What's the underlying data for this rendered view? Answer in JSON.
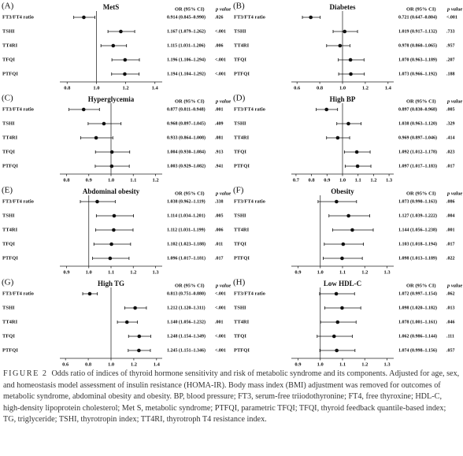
{
  "chart_data": [
    {
      "type": "forest",
      "panel": "(A)",
      "title": "MetS",
      "or_header": "OR (95% CI)",
      "p_header": "p value",
      "categories": [
        "FT3/FT4 ratio",
        "TSHI",
        "TT4RI",
        "TFQI",
        "PTFQI"
      ],
      "values": [
        0.914,
        1.167,
        1.115,
        1.196,
        1.194
      ],
      "lower": [
        0.845,
        1.079,
        1.031,
        1.106,
        1.104
      ],
      "upper": [
        0.99,
        1.262,
        1.206,
        1.294,
        1.292
      ],
      "value_labels": [
        "0.914 (0.845–0.990)",
        "1.167 (1.079–1.262)",
        "1.115 (1.031–1.206)",
        "1.196 (1.106–1.294)",
        "1.194 (1.104–1.292)"
      ],
      "p_values": [
        ".026",
        "<.001",
        ".006",
        "<.001",
        "<.001"
      ],
      "xlim": [
        0.75,
        1.45
      ],
      "xticks": [
        0.8,
        {
          "value": 1,
          "label": "1.0"
        },
        1.2,
        1.4
      ],
      "reference": 1
    },
    {
      "type": "forest",
      "panel": "(B)",
      "title": "Diabetes",
      "or_header": "OR (95% CI)",
      "p_header": "p value",
      "categories": [
        "FT3/FT4 ratio",
        "TSHI",
        "TT4RI",
        "TFQI",
        "PTFQI"
      ],
      "values": [
        0.721,
        1.019,
        0.978,
        1.07,
        1.073
      ],
      "lower": [
        0.647,
        0.917,
        0.86,
        0.963,
        0.966
      ],
      "upper": [
        0.804,
        1.132,
        1.065,
        1.189,
        1.192
      ],
      "value_labels": [
        "0.721 (0.647–0.804)",
        "1.019 (0.917–1.132)",
        "0.978 (0.860–1.065)",
        "1.070 (0.963–1.189)",
        "1.073 (0.966–1.192)"
      ],
      "p_values": [
        "<.001",
        ".733",
        ".957",
        ".207",
        ".188"
      ],
      "xlim": [
        0.55,
        1.45
      ],
      "xticks": [
        0.6,
        0.8,
        {
          "value": 1,
          "label": "1.0"
        },
        1.2,
        1.4
      ],
      "reference": 1
    },
    {
      "type": "forest",
      "panel": "(C)",
      "title": "Hyperglycemia",
      "or_header": "OR (95% CI)",
      "p_header": "p value",
      "categories": [
        "FT3/FT4 ratio",
        "TSHI",
        "TT4RI",
        "TFQI",
        "PTFQI"
      ],
      "values": [
        0.877,
        0.968,
        0.933,
        1.004,
        1.003
      ],
      "lower": [
        0.811,
        0.897,
        0.864,
        0.93,
        0.929
      ],
      "upper": [
        0.948,
        1.045,
        1.008,
        1.084,
        1.082
      ],
      "value_labels": [
        "0.877 (0.811–0.948)",
        "0.968 (0.897–1.045)",
        "0.933 (0.864–1.008)",
        "1.004 (0.930–1.084)",
        "1.003 (0.929–1.082)"
      ],
      "p_values": [
        ".001",
        ".409",
        ".081",
        ".913",
        ".941"
      ],
      "xlim": [
        0.77,
        1.23
      ],
      "xticks": [
        0.8,
        0.9,
        {
          "value": 1,
          "label": "1.0"
        },
        1.1,
        1.2
      ],
      "reference": 1
    },
    {
      "type": "forest",
      "panel": "(D)",
      "title": "High BP",
      "or_header": "OR (95% CI)",
      "p_header": "p value",
      "categories": [
        "FT3/FT4 ratio",
        "TSHI",
        "TT4RI",
        "TFQI",
        "PTFQI"
      ],
      "values": [
        0.897,
        1.038,
        0.969,
        1.092,
        1.097
      ],
      "lower": [
        0.83,
        0.963,
        0.897,
        1.012,
        1.017
      ],
      "upper": [
        0.968,
        1.12,
        1.046,
        1.178,
        1.183
      ],
      "value_labels": [
        "0.897 (0.830–0.968)",
        "1.038 (0.963–1.120)",
        "0.969 (0.897–1.046)",
        "1.092 (1.012–1.178)",
        "1.097 (1.017–1.183)"
      ],
      "p_values": [
        ".005",
        ".329",
        ".414",
        ".023",
        ".017"
      ],
      "xlim": [
        0.67,
        1.33
      ],
      "xticks": [
        0.7,
        0.8,
        0.9,
        {
          "value": 1,
          "label": "1.0"
        },
        1.1,
        1.2,
        1.3
      ],
      "reference": 1
    },
    {
      "type": "forest",
      "panel": "(E)",
      "title": "Abdominal obesity",
      "or_header": "OR (95% CI)",
      "p_header": "p value",
      "categories": [
        "FT3/FT4 ratio",
        "TSHI",
        "TT4RI",
        "TFQI",
        "PTFQI"
      ],
      "values": [
        1.038,
        1.114,
        1.112,
        1.102,
        1.096
      ],
      "lower": [
        0.962,
        1.034,
        1.031,
        1.023,
        1.017
      ],
      "upper": [
        1.119,
        1.201,
        1.199,
        1.188,
        1.181
      ],
      "value_labels": [
        "1.038 (0.962–1.119)",
        "1.114 (1.034–1.201)",
        "1.112 (1.031–1.199)",
        "1.102 (1.023–1.188)",
        "1.096 (1.017–1.181)"
      ],
      "p_values": [
        ".338",
        ".005",
        ".006",
        ".011",
        ".017"
      ],
      "xlim": [
        0.87,
        1.33
      ],
      "xticks": [
        0.9,
        {
          "value": 1,
          "label": "1.0"
        },
        1.1,
        1.2,
        1.3
      ],
      "reference": 1
    },
    {
      "type": "forest",
      "panel": "(F)",
      "title": "Obesity",
      "or_header": "OR (95% CI)",
      "p_header": "p value",
      "categories": [
        "FT3/FT4 ratio",
        "TSHI",
        "TT4RI",
        "TFQI",
        "PTFQI"
      ],
      "values": [
        1.073,
        1.127,
        1.144,
        1.103,
        1.098
      ],
      "lower": [
        0.99,
        1.039,
        1.056,
        1.018,
        1.013
      ],
      "upper": [
        1.163,
        1.222,
        1.238,
        1.194,
        1.189
      ],
      "value_labels": [
        "1.073 (0.990–1.163)",
        "1.127 (1.039–1.222)",
        "1.144 (1.056–1.238)",
        "1.103 (1.018–1.194)",
        "1.098 (1.013–1.189)"
      ],
      "p_values": [
        ".086",
        ".004",
        ".001",
        ".017",
        ".022"
      ],
      "xlim": [
        0.87,
        1.33
      ],
      "xticks": [
        0.9,
        {
          "value": 1,
          "label": "1.0"
        },
        1.1,
        1.2,
        1.3
      ],
      "reference": 1
    },
    {
      "type": "forest",
      "panel": "(G)",
      "title": "High TG",
      "or_header": "OR (95% CI)",
      "p_header": "p value",
      "categories": [
        "FT3/FT4 ratio",
        "TSHI",
        "TT4RI",
        "TFQI",
        "PTFQI"
      ],
      "values": [
        0.813,
        1.212,
        1.14,
        1.248,
        1.245
      ],
      "lower": [
        0.751,
        1.12,
        1.056,
        1.154,
        1.151
      ],
      "upper": [
        0.88,
        1.311,
        1.232,
        1.349,
        1.346
      ],
      "value_labels": [
        "0.813 (0.751–0.880)",
        "1.212 (1.120–1.311)",
        "1.140 (1.056–1.232)",
        "1.248 (1.154–1.349)",
        "1.245 (1.151–1.346)"
      ],
      "p_values": [
        "<.001",
        "<.001",
        ".001",
        "<.001",
        "<.001"
      ],
      "xlim": [
        0.55,
        1.45
      ],
      "xticks": [
        0.6,
        0.8,
        {
          "value": 1,
          "label": "1.0"
        },
        1.2,
        1.4
      ],
      "reference": 1
    },
    {
      "type": "forest",
      "panel": "(H)",
      "title": "Low HDL-C",
      "or_header": "OR (95% CI)",
      "p_header": "p value",
      "categories": [
        "FT3/FT4 ratio",
        "TSHI",
        "TT4RI",
        "TFQI",
        "PTFQI"
      ],
      "values": [
        1.072,
        1.098,
        1.078,
        1.062,
        1.074
      ],
      "lower": [
        0.997,
        1.02,
        1.001,
        0.986,
        0.998
      ],
      "upper": [
        1.154,
        1.182,
        1.161,
        1.144,
        1.156
      ],
      "value_labels": [
        "1.072 (0.997–1.154)",
        "1.098 (1.020–1.182)",
        "1.078 (1.001–1.161)",
        "1.062 (0.986–1.144)",
        "1.074 (0.998–1.156)"
      ],
      "p_values": [
        ".062",
        ".013",
        ".046",
        ".111",
        ".057"
      ],
      "xlim": [
        0.87,
        1.33
      ],
      "xticks": [
        0.9,
        {
          "value": 1,
          "label": "1.0"
        },
        1.1,
        1.2,
        1.3
      ],
      "reference": 1
    }
  ],
  "caption": {
    "label": "FIGURE 2",
    "text": "Odds ratio of indices of thyroid hormone sensitivity and risk of metabolic syndrome and its components. Adjusted for age, sex, and homeostasis model assessment of insulin resistance (HOMA-IR). Body mass index (BMI) adjustment was removed for outcomes of metabolic syndrome, abdominal obesity and obesity. BP, blood pressure; FT3, serum-free triiodothyronine; FT4, free thyroxine; HDL-C, high-density lipoprotein cholesterol; Met S, metabolic syndrome; PTFQI, parametric TFQI; TFQI, thyroid feedback quantile-based index; TG, triglyceride; TSHI, thyrotropin index; TT4RI, thyrotroph T4 resistance index."
  }
}
